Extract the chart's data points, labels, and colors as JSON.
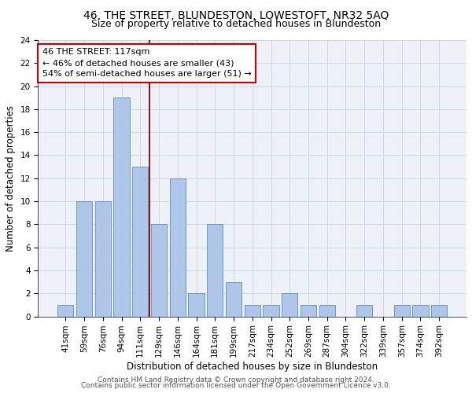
{
  "title": "46, THE STREET, BLUNDESTON, LOWESTOFT, NR32 5AQ",
  "subtitle": "Size of property relative to detached houses in Blundeston",
  "xlabel": "Distribution of detached houses by size in Blundeston",
  "ylabel": "Number of detached properties",
  "categories": [
    "41sqm",
    "59sqm",
    "76sqm",
    "94sqm",
    "111sqm",
    "129sqm",
    "146sqm",
    "164sqm",
    "181sqm",
    "199sqm",
    "217sqm",
    "234sqm",
    "252sqm",
    "269sqm",
    "287sqm",
    "304sqm",
    "322sqm",
    "339sqm",
    "357sqm",
    "374sqm",
    "392sqm"
  ],
  "values": [
    1,
    10,
    10,
    19,
    13,
    8,
    12,
    2,
    8,
    3,
    1,
    1,
    2,
    1,
    1,
    0,
    1,
    0,
    1,
    1,
    1
  ],
  "bar_color": "#aec6e8",
  "bar_edge_color": "#5a8fc0",
  "grid_color": "#d0d8e8",
  "background_color": "#eef2f8",
  "subject_line_color": "#8b0000",
  "subject_label": "46 THE STREET: 117sqm",
  "annotation_line1": "46 THE STREET: 117sqm",
  "annotation_line2": "← 46% of detached houses are smaller (43)",
  "annotation_line3": "54% of semi-detached houses are larger (51) →",
  "annotation_box_color": "#ffffff",
  "annotation_box_edge": "#cc0000",
  "ylim": [
    0,
    24
  ],
  "yticks": [
    0,
    2,
    4,
    6,
    8,
    10,
    12,
    14,
    16,
    18,
    20,
    22,
    24
  ],
  "footer_line1": "Contains HM Land Registry data © Crown copyright and database right 2024.",
  "footer_line2": "Contains public sector information licensed under the Open Government Licence v3.0.",
  "title_fontsize": 10,
  "subtitle_fontsize": 9,
  "xlabel_fontsize": 8.5,
  "ylabel_fontsize": 8.5,
  "tick_fontsize": 7.5,
  "annotation_fontsize": 8,
  "footer_fontsize": 6.5
}
